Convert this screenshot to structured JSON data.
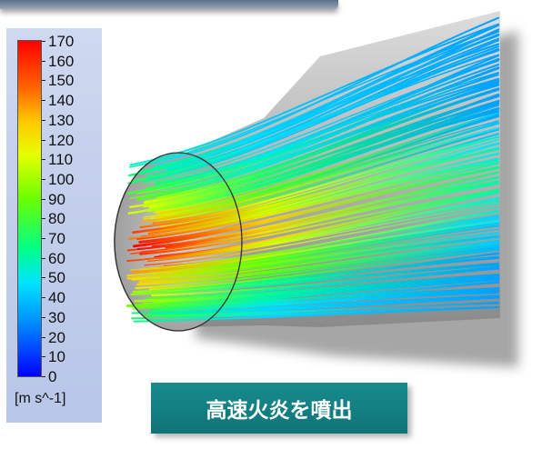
{
  "legend": {
    "ticks": [
      "170",
      "160",
      "150",
      "140",
      "130",
      "120",
      "110",
      "100",
      "90",
      "80",
      "70",
      "60",
      "50",
      "40",
      "30",
      "20",
      "10",
      "0"
    ],
    "unit": "[m s^-1]"
  },
  "caption": {
    "text": "高速火炎を噴出"
  },
  "colors": {
    "caption_bg": "#137f81",
    "legend_bg": "#c4d0ec"
  }
}
